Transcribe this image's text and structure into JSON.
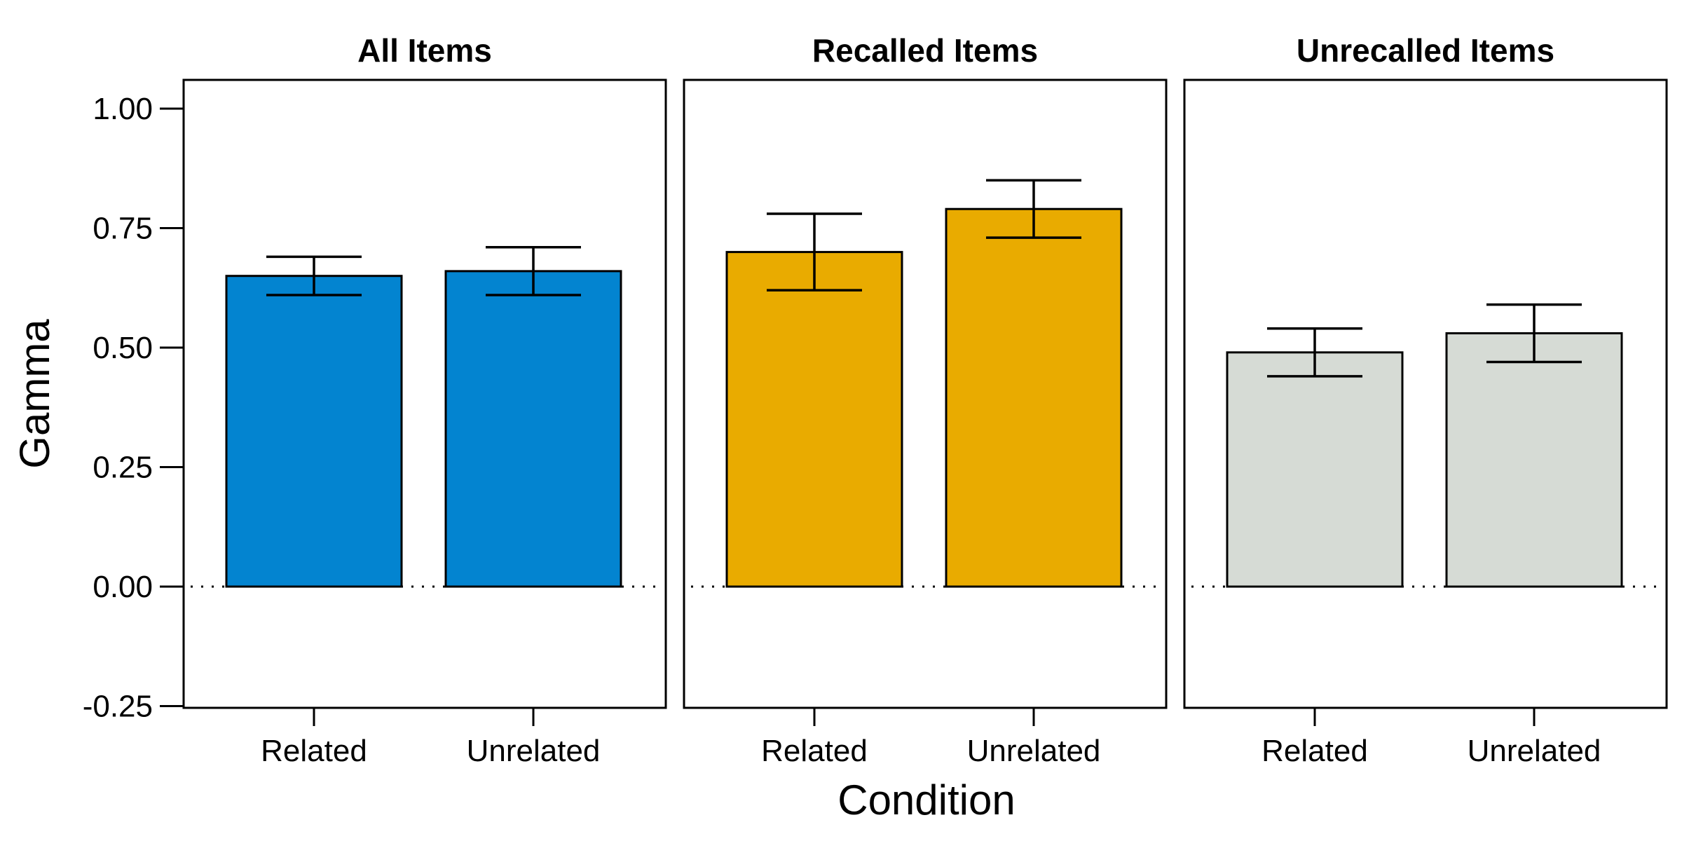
{
  "chart_data": {
    "type": "bar",
    "xlabel": "Condition",
    "ylabel": "Gamma",
    "ylim": [
      -0.25,
      1.0
    ],
    "yticks": [
      "1.00",
      "0.75",
      "0.50",
      "0.25",
      "0.00",
      "-0.25"
    ],
    "ytick_values": [
      1.0,
      0.75,
      0.5,
      0.25,
      0.0,
      -0.25
    ],
    "reference_line": 0.0,
    "categories": [
      "Related",
      "Unrelated"
    ],
    "panels": [
      {
        "title": "All Items",
        "color": "#0384D0",
        "values": [
          0.65,
          0.66
        ],
        "error_low": [
          0.61,
          0.61
        ],
        "error_high": [
          0.69,
          0.71
        ]
      },
      {
        "title": "Recalled Items",
        "color": "#E9AB00",
        "values": [
          0.7,
          0.79
        ],
        "error_low": [
          0.62,
          0.73
        ],
        "error_high": [
          0.78,
          0.85
        ]
      },
      {
        "title": "Unrecalled Items",
        "color": "#D6DBD5",
        "values": [
          0.49,
          0.53
        ],
        "error_low": [
          0.44,
          0.47
        ],
        "error_high": [
          0.54,
          0.59
        ]
      }
    ]
  }
}
